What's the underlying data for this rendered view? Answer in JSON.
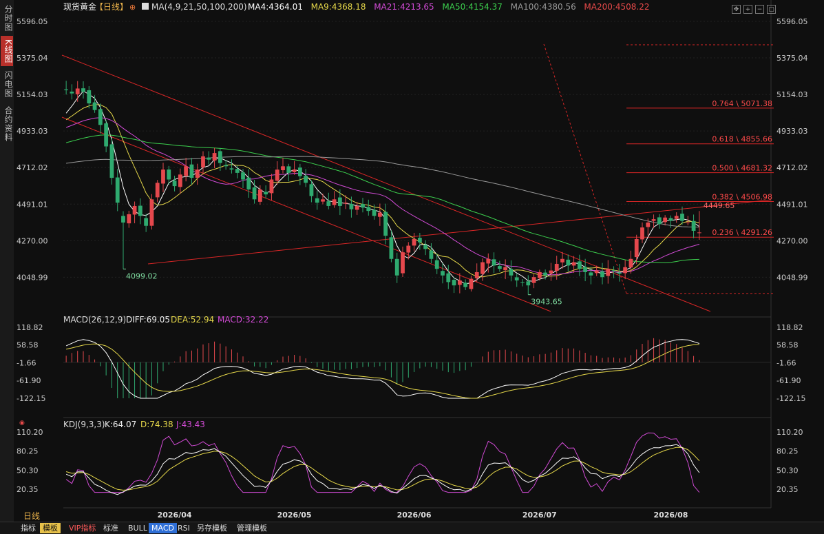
{
  "sidebar": {
    "tabs": [
      {
        "label": "分时图",
        "active": false
      },
      {
        "label": "K线图",
        "active": true
      },
      {
        "label": "闪电图",
        "active": false
      },
      {
        "label": "合约资料",
        "active": false
      }
    ]
  },
  "header": {
    "instrument": "现货黄金",
    "period": "【日线】",
    "ma_label": "MA(4,9,21,50,100,200)",
    "ma_values": [
      {
        "text": "MA4:4364.01",
        "color": "#ffffff"
      },
      {
        "text": "MA9:4368.18",
        "color": "#e6d84a"
      },
      {
        "text": "MA21:4213.65",
        "color": "#d24bd6"
      },
      {
        "text": "MA50:4154.37",
        "color": "#3ccf4e"
      },
      {
        "text": "MA100:4380.56",
        "color": "#9a9a9a"
      },
      {
        "text": "MA200:4508.22",
        "color": "#e84a4a"
      }
    ]
  },
  "macd_header": {
    "label": "MACD(26,12,9)",
    "diff": "DIFF:69.05",
    "dea": "DEA:52.94",
    "macd": "MACD:32.22"
  },
  "kdj_header": {
    "label": "KDJ(9,3,3)",
    "k": "K:64.07",
    "d": "D:74.38",
    "j": "J:43.43"
  },
  "bottom_left_label": "日线",
  "bottom_tabs": [
    "指标",
    "模板",
    "VIP指标",
    "标准",
    "BULL",
    "MACD",
    "RSI",
    "另存模板",
    "管理模板"
  ],
  "chart_data": {
    "type": "candlestick",
    "price_axis": {
      "ticks": [
        "5596.05",
        "5375.04",
        "5154.03",
        "4933.03",
        "4712.02",
        "4491.01",
        "4270.00",
        "4048.99"
      ],
      "ylim": [
        3830,
        5650
      ]
    },
    "macd_axis": {
      "ticks": [
        "118.82",
        "58.58",
        "-1.66",
        "-61.90",
        "-122.15"
      ]
    },
    "kdj_axis": {
      "ticks": [
        "110.20",
        "80.25",
        "50.30",
        "20.35"
      ]
    },
    "x_labels": [
      "2026/04",
      "2026/05",
      "2026/06",
      "2026/07",
      "2026/08"
    ],
    "x_label_index": [
      19,
      40,
      61,
      83,
      106
    ],
    "annotations": [
      {
        "text": "4099.02",
        "index": 10,
        "value": 4099.02
      },
      {
        "text": "3943.65",
        "index": 81,
        "value": 3943.65
      },
      {
        "text": "4449.65",
        "index": 111,
        "value": 4449.65
      }
    ],
    "fibonacci": [
      {
        "label": "0.764 \\ 5071.38",
        "value": 5071.38
      },
      {
        "label": "0.618 \\ 4855.66",
        "value": 4855.66
      },
      {
        "label": "0.500 \\ 4681.32",
        "value": 4681.32
      },
      {
        "label": "0.382 \\ 4506.98",
        "value": 4506.98
      },
      {
        "label": "0.236 \\ 4291.26",
        "value": 4291.26
      }
    ],
    "closes": [
      5180,
      5160,
      5190,
      5170,
      5100,
      5060,
      4970,
      4840,
      4650,
      4500,
      4380,
      4430,
      4480,
      4420,
      4360,
      4520,
      4620,
      4700,
      4640,
      4600,
      4670,
      4720,
      4650,
      4700,
      4780,
      4760,
      4800,
      4740,
      4720,
      4700,
      4680,
      4640,
      4580,
      4520,
      4580,
      4550,
      4640,
      4700,
      4720,
      4680,
      4700,
      4660,
      4620,
      4540,
      4500,
      4520,
      4480,
      4520,
      4480,
      4500,
      4460,
      4480,
      4470,
      4450,
      4420,
      4440,
      4300,
      4160,
      4060,
      4200,
      4240,
      4280,
      4260,
      4220,
      4160,
      4100,
      4060,
      4020,
      4000,
      4030,
      3990,
      4040,
      4080,
      4140,
      4160,
      4120,
      4100,
      4110,
      4060,
      4030,
      4020,
      4000,
      4050,
      4080,
      4060,
      4090,
      4130,
      4160,
      4120,
      4140,
      4100,
      4080,
      4060,
      4090,
      4050,
      4100,
      4090,
      4070,
      4110,
      4160,
      4280,
      4350,
      4380,
      4400,
      4370,
      4410,
      4390,
      4420,
      4390,
      4380,
      4330,
      4320
    ]
  }
}
